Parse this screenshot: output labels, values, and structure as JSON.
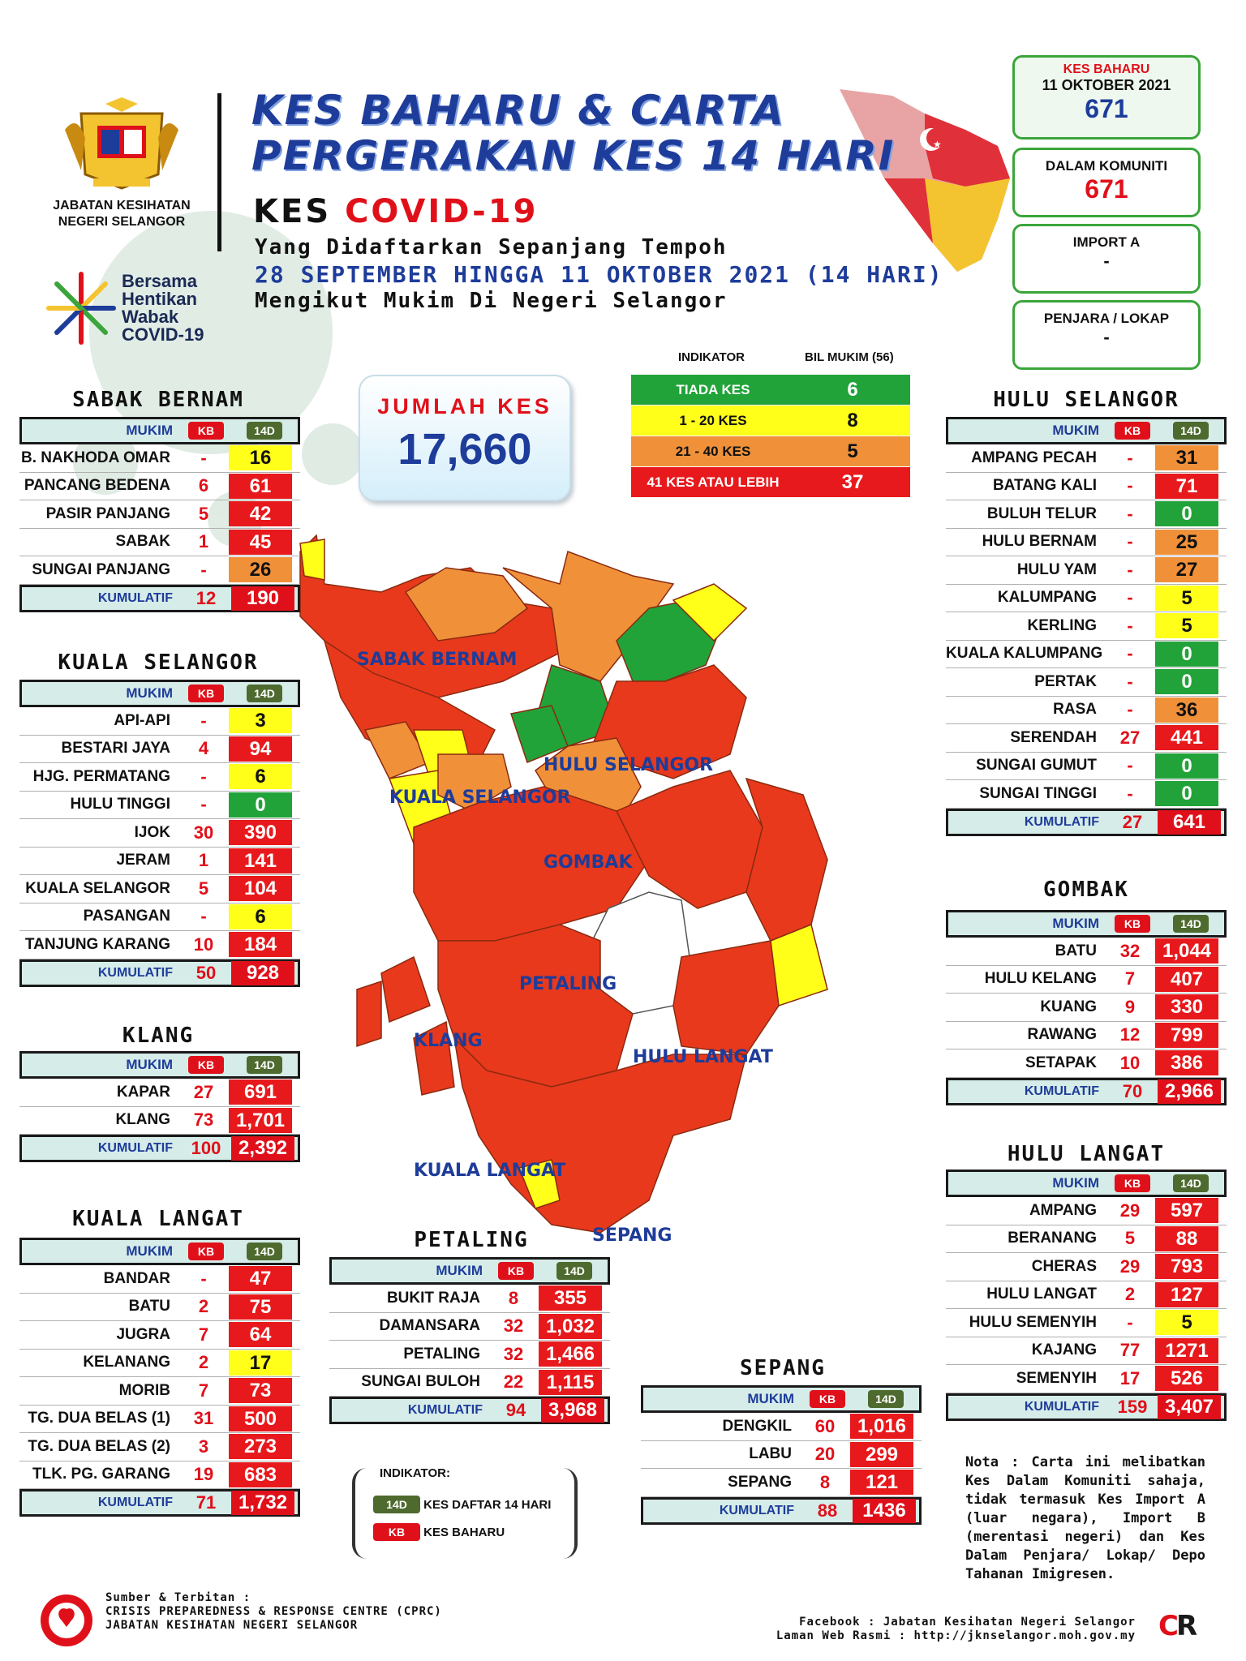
{
  "header": {
    "org_name_1": "JABATAN KESIHATAN",
    "org_name_2": "NEGERI SELANGOR",
    "campaign_lines": [
      "Bersama",
      "Hentikan",
      "Wabak",
      "COVID-19"
    ],
    "title_line1": "KES BAHARU & CARTA",
    "title_line2": "PERGERAKAN KES 14 HARI",
    "kes": "KES",
    "covid": "COVID-19",
    "line1": "Yang Didaftarkan Sepanjang Tempoh",
    "line2": "28 SEPTEMBER HINGGA 11 OKTOBER 2021 (14 HARI)",
    "line3": "Mengikut Mukim Di Negeri Selangor"
  },
  "summary": {
    "kes_baharu_label": "KES BAHARU",
    "date": "11 OKTOBER 2021",
    "kes_baharu": "671",
    "komuniti_label": "DALAM KOMUNITI",
    "komuniti": "671",
    "import_label": "IMPORT A",
    "import": "-",
    "penjara_label": "PENJARA / LOKAP",
    "penjara": "-"
  },
  "jumlah": {
    "label": "JUMLAH KES",
    "value": "17,660"
  },
  "indicator": {
    "head_1": "INDIKATOR",
    "head_2": "BIL MUKIM (56)",
    "rows": [
      {
        "label": "TIADA KES",
        "count": "6",
        "color": "#21a339"
      },
      {
        "label": "1 - 20 KES",
        "count": "8",
        "color": "#ffff1a"
      },
      {
        "label": "21 - 40 KES",
        "count": "5",
        "color": "#f0913a"
      },
      {
        "label": "41 KES ATAU LEBIH",
        "count": "37",
        "color": "#e8191c"
      }
    ]
  },
  "col_mukim": "MUKIM",
  "col_kb": "KB",
  "col_14d": "14D",
  "col_kumulatif": "KUMULATIF",
  "sabak_bernam": {
    "title": "SABAK BERNAM",
    "rows": [
      {
        "name": "B. NAKHODA OMAR",
        "kb": "-",
        "d14": "16"
      },
      {
        "name": "PANCANG BEDENA",
        "kb": "6",
        "d14": "61"
      },
      {
        "name": "PASIR PANJANG",
        "kb": "5",
        "d14": "42"
      },
      {
        "name": "SABAK",
        "kb": "1",
        "d14": "45"
      },
      {
        "name": "SUNGAI PANJANG",
        "kb": "-",
        "d14": "26"
      }
    ],
    "total_kb": "12",
    "total_14d": "190"
  },
  "kuala_selangor": {
    "title": "KUALA SELANGOR",
    "rows": [
      {
        "name": "API-API",
        "kb": "-",
        "d14": "3"
      },
      {
        "name": "BESTARI JAYA",
        "kb": "4",
        "d14": "94"
      },
      {
        "name": "HJG. PERMATANG",
        "kb": "-",
        "d14": "6"
      },
      {
        "name": "HULU TINGGI",
        "kb": "-",
        "d14": "0"
      },
      {
        "name": "IJOK",
        "kb": "30",
        "d14": "390"
      },
      {
        "name": "JERAM",
        "kb": "1",
        "d14": "141"
      },
      {
        "name": "KUALA SELANGOR",
        "kb": "5",
        "d14": "104"
      },
      {
        "name": "PASANGAN",
        "kb": "-",
        "d14": "6"
      },
      {
        "name": "TANJUNG KARANG",
        "kb": "10",
        "d14": "184"
      }
    ],
    "total_kb": "50",
    "total_14d": "928"
  },
  "klang": {
    "title": "KLANG",
    "rows": [
      {
        "name": "KAPAR",
        "kb": "27",
        "d14": "691"
      },
      {
        "name": "KLANG",
        "kb": "73",
        "d14": "1,701"
      }
    ],
    "total_kb": "100",
    "total_14d": "2,392"
  },
  "kuala_langat": {
    "title": "KUALA LANGAT",
    "rows": [
      {
        "name": "BANDAR",
        "kb": "-",
        "d14": "47"
      },
      {
        "name": "BATU",
        "kb": "2",
        "d14": "75"
      },
      {
        "name": "JUGRA",
        "kb": "7",
        "d14": "64"
      },
      {
        "name": "KELANANG",
        "kb": "2",
        "d14": "17"
      },
      {
        "name": "MORIB",
        "kb": "7",
        "d14": "73"
      },
      {
        "name": "TG. DUA BELAS (1)",
        "kb": "31",
        "d14": "500"
      },
      {
        "name": "TG. DUA BELAS (2)",
        "kb": "3",
        "d14": "273"
      },
      {
        "name": "TLK. PG. GARANG",
        "kb": "19",
        "d14": "683"
      }
    ],
    "total_kb": "71",
    "total_14d": "1,732"
  },
  "petaling": {
    "title": "PETALING",
    "rows": [
      {
        "name": "BUKIT RAJA",
        "kb": "8",
        "d14": "355"
      },
      {
        "name": "DAMANSARA",
        "kb": "32",
        "d14": "1,032"
      },
      {
        "name": "PETALING",
        "kb": "32",
        "d14": "1,466"
      },
      {
        "name": "SUNGAI BULOH",
        "kb": "22",
        "d14": "1,115"
      }
    ],
    "total_kb": "94",
    "total_14d": "3,968"
  },
  "sepang": {
    "title": "SEPANG",
    "rows": [
      {
        "name": "DENGKIL",
        "kb": "60",
        "d14": "1,016"
      },
      {
        "name": "LABU",
        "kb": "20",
        "d14": "299"
      },
      {
        "name": "SEPANG",
        "kb": "8",
        "d14": "121"
      }
    ],
    "total_kb": "88",
    "total_14d": "1436"
  },
  "hulu_selangor": {
    "title": "HULU SELANGOR",
    "rows": [
      {
        "name": "AMPANG PECAH",
        "kb": "-",
        "d14": "31"
      },
      {
        "name": "BATANG KALI",
        "kb": "-",
        "d14": "71"
      },
      {
        "name": "BULUH TELUR",
        "kb": "-",
        "d14": "0"
      },
      {
        "name": "HULU BERNAM",
        "kb": "-",
        "d14": "25"
      },
      {
        "name": "HULU YAM",
        "kb": "-",
        "d14": "27"
      },
      {
        "name": "KALUMPANG",
        "kb": "-",
        "d14": "5"
      },
      {
        "name": "KERLING",
        "kb": "-",
        "d14": "5"
      },
      {
        "name": "KUALA KALUMPANG",
        "kb": "-",
        "d14": "0"
      },
      {
        "name": "PERTAK",
        "kb": "-",
        "d14": "0"
      },
      {
        "name": "RASA",
        "kb": "-",
        "d14": "36"
      },
      {
        "name": "SERENDAH",
        "kb": "27",
        "d14": "441"
      },
      {
        "name": "SUNGAI GUMUT",
        "kb": "-",
        "d14": "0"
      },
      {
        "name": "SUNGAI TINGGI",
        "kb": "-",
        "d14": "0"
      }
    ],
    "total_kb": "27",
    "total_14d": "641"
  },
  "gombak": {
    "title": "GOMBAK",
    "rows": [
      {
        "name": "BATU",
        "kb": "32",
        "d14": "1,044"
      },
      {
        "name": "HULU KELANG",
        "kb": "7",
        "d14": "407"
      },
      {
        "name": "KUANG",
        "kb": "9",
        "d14": "330"
      },
      {
        "name": "RAWANG",
        "kb": "12",
        "d14": "799"
      },
      {
        "name": "SETAPAK",
        "kb": "10",
        "d14": "386"
      }
    ],
    "total_kb": "70",
    "total_14d": "2,966"
  },
  "hulu_langat": {
    "title": "HULU LANGAT",
    "rows": [
      {
        "name": "AMPANG",
        "kb": "29",
        "d14": "597"
      },
      {
        "name": "BERANANG",
        "kb": "5",
        "d14": "88"
      },
      {
        "name": "CHERAS",
        "kb": "29",
        "d14": "793"
      },
      {
        "name": "HULU LANGAT",
        "kb": "2",
        "d14": "127"
      },
      {
        "name": "HULU SEMENYIH",
        "kb": "-",
        "d14": "5"
      },
      {
        "name": "KAJANG",
        "kb": "77",
        "d14": "1271"
      },
      {
        "name": "SEMENYIH",
        "kb": "17",
        "d14": "526"
      }
    ],
    "total_kb": "159",
    "total_14d": "3,407"
  },
  "map_labels": {
    "sabak_bernam": "SABAK BERNAM",
    "kuala_selangor": "KUALA SELANGOR",
    "hulu_selangor": "HULU SELANGOR",
    "gombak": "GOMBAK",
    "petaling": "PETALING",
    "klang": "KLANG",
    "hulu_langat": "HULU LANGAT",
    "kuala_langat": "KUALA LANGAT",
    "sepang": "SEPANG"
  },
  "key": {
    "title": "INDIKATOR:",
    "d14_label": "KES DAFTAR 14 HARI",
    "kb_label": "KES BAHARU"
  },
  "nota": "Nota : Carta ini melibatkan Kes Dalam Komuniti sahaja, tidak termasuk Kes Import A (luar negara), Import B (merentasi negeri) dan Kes Dalam Penjara/ Lokap/ Depo Tahanan Imigresen.",
  "footer": {
    "l1": "Sumber & Terbitan :",
    "l2": "CRISIS PREPAREDNESS & RESPONSE CENTRE (CPRC)",
    "l3": "JABATAN KESIHATAN NEGERI SELANGOR",
    "r1": "Facebook : Jabatan Kesihatan Negeri Selangor",
    "r2": "Laman Web Rasmi : http://jknselangor.moh.gov.my"
  }
}
